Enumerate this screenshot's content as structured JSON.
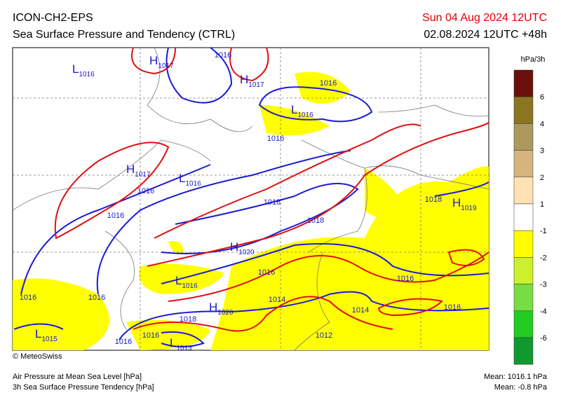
{
  "header": {
    "model": "ICON-CH2-EPS",
    "title": "Sea Surface Pressure and Tendency (CTRL)",
    "valid_time": "Sun 04 Aug 2024 12UTC",
    "run": "02.08.2024 12UTC +48h"
  },
  "map_labels": [
    {
      "symbol": "L",
      "pressure": "1016"
    },
    {
      "symbol": "H",
      "pressure": "1017"
    },
    {
      "pressure": "1016"
    },
    {
      "symbol": "H",
      "pressure": "1017"
    },
    {
      "pressure": "1016"
    },
    {
      "symbol": "L",
      "pressure": "1016"
    },
    {
      "pressure": "1016"
    },
    {
      "symbol": "H",
      "pressure": "1017"
    },
    {
      "symbol": "L",
      "pressure": "1016"
    },
    {
      "pressure": "1016"
    },
    {
      "pressure": "1018"
    },
    {
      "pressure": "1016"
    },
    {
      "pressure": "1018"
    },
    {
      "symbol": "H",
      "pressure": "1019"
    },
    {
      "pressure": "1018"
    },
    {
      "symbol": "H",
      "pressure": "1020"
    },
    {
      "pressure": "1016"
    },
    {
      "symbol": "L",
      "pressure": "1016"
    },
    {
      "pressure": "1016"
    },
    {
      "pressure": "1016"
    },
    {
      "pressure": "1016"
    },
    {
      "pressure": "1014"
    },
    {
      "symbol": "H",
      "pressure": "1020"
    },
    {
      "pressure": "1014"
    },
    {
      "pressure": "1016"
    },
    {
      "pressure": "1018"
    },
    {
      "symbol": "L",
      "pressure": "1015"
    },
    {
      "pressure": "1016"
    },
    {
      "symbol": "L",
      "pressure": "1013"
    },
    {
      "pressure": "1012"
    },
    {
      "pressure": "1016"
    }
  ],
  "colorbar": {
    "unit": "hPa/3h",
    "ticks": [
      6,
      4,
      3,
      2,
      1,
      -1,
      -2,
      -3,
      -4,
      -6
    ],
    "colors": [
      "#6b0f0a",
      "#8b7520",
      "#ad9860",
      "#d6b47e",
      "#ffe1b3",
      "#ffffff",
      "#ffff00",
      "#ccf02a",
      "#77dd44",
      "#22cc22",
      "#11992f"
    ]
  },
  "footer": {
    "copyright": "© MeteoSwiss",
    "legend_pressure": "Air Pressure at Mean Sea Level [hPa]",
    "legend_tendency": "3h Sea Surface Pressure Tendency [hPa]",
    "mean_pressure": "Mean: 1016.1 hPa",
    "mean_tendency": "Mean:  -0.8 hPa"
  }
}
